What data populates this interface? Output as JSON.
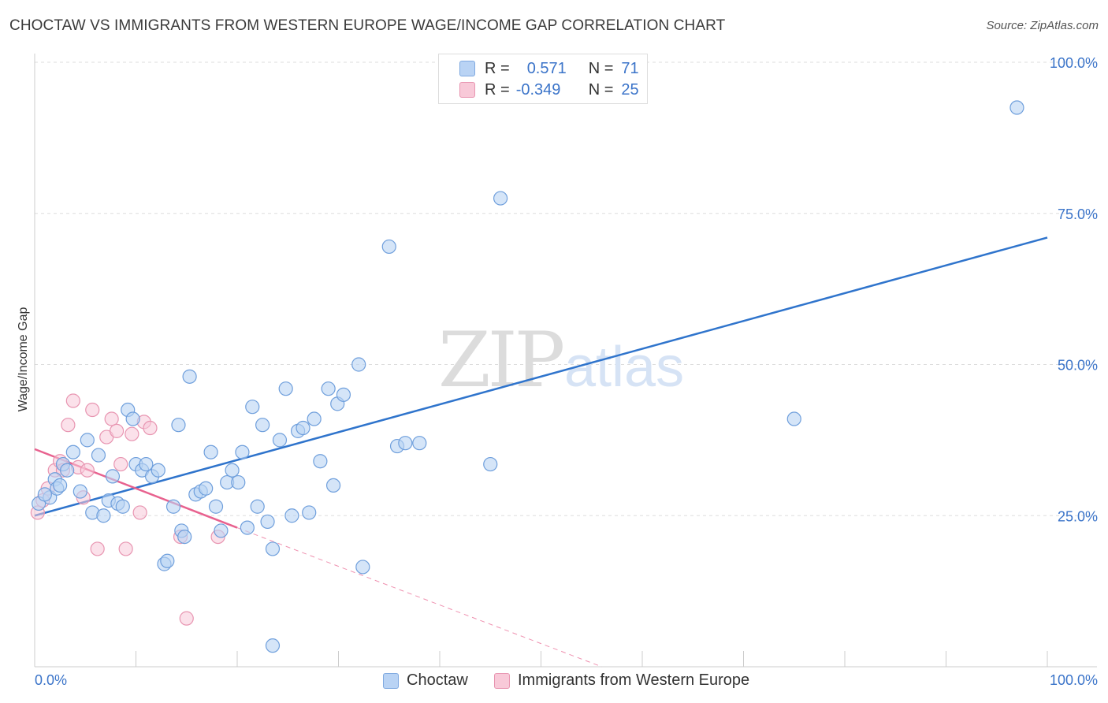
{
  "title": "CHOCTAW VS IMMIGRANTS FROM WESTERN EUROPE WAGE/INCOME GAP CORRELATION CHART",
  "source": "Source: ZipAtlas.com",
  "watermark": {
    "zip": "ZIP",
    "atlas": "atlas"
  },
  "legend_stats": [
    {
      "r_label": "R =",
      "r_value": "0.571",
      "n_label": "N =",
      "n_value": "71"
    },
    {
      "r_label": "R =",
      "r_value": "-0.349",
      "n_label": "N =",
      "n_value": "25"
    }
  ],
  "colors": {
    "choctaw_fill": "#b9d3f4",
    "choctaw_stroke": "#6f9fdc",
    "choctaw_line": "#2f74cc",
    "immig_fill": "#f8c9d8",
    "immig_stroke": "#e895b1",
    "immig_line": "#e8628f",
    "axis_label": "#3b74c9",
    "grid": "#dddddd"
  },
  "chart_data": {
    "type": "scatter",
    "title": "CHOCTAW VS IMMIGRANTS FROM WESTERN EUROPE WAGE/INCOME GAP CORRELATION CHART",
    "xlabel": "",
    "ylabel": "Wage/Income Gap",
    "xlim": [
      0,
      100
    ],
    "ylim": [
      0,
      100
    ],
    "x_tick_labels": [
      "0.0%",
      "100.0%"
    ],
    "y_tick_labels": [
      "25.0%",
      "50.0%",
      "75.0%",
      "100.0%"
    ],
    "y_ticks": [
      25,
      50,
      75,
      100
    ],
    "grid": true,
    "legend_position": "bottom",
    "series": [
      {
        "name": "Choctaw",
        "points": [
          [
            0.4,
            27.0
          ],
          [
            1.5,
            28.0
          ],
          [
            2.0,
            31.0
          ],
          [
            2.2,
            29.5
          ],
          [
            2.8,
            33.5
          ],
          [
            3.2,
            32.5
          ],
          [
            3.8,
            35.5
          ],
          [
            4.5,
            29.0
          ],
          [
            5.2,
            37.5
          ],
          [
            5.7,
            25.5
          ],
          [
            6.3,
            35.0
          ],
          [
            6.8,
            25.0
          ],
          [
            7.3,
            27.5
          ],
          [
            7.7,
            31.5
          ],
          [
            8.2,
            27.0
          ],
          [
            8.7,
            26.5
          ],
          [
            9.2,
            42.5
          ],
          [
            9.7,
            41.0
          ],
          [
            10.0,
            33.5
          ],
          [
            10.6,
            32.5
          ],
          [
            11.0,
            33.5
          ],
          [
            11.6,
            31.5
          ],
          [
            12.2,
            32.5
          ],
          [
            12.8,
            17.0
          ],
          [
            13.1,
            17.5
          ],
          [
            13.7,
            26.5
          ],
          [
            14.2,
            40.0
          ],
          [
            14.5,
            22.5
          ],
          [
            14.8,
            21.5
          ],
          [
            15.3,
            48.0
          ],
          [
            15.9,
            28.5
          ],
          [
            16.4,
            29.0
          ],
          [
            16.9,
            29.5
          ],
          [
            17.4,
            35.5
          ],
          [
            17.9,
            26.5
          ],
          [
            18.4,
            22.5
          ],
          [
            19.0,
            30.5
          ],
          [
            19.5,
            32.5
          ],
          [
            20.1,
            30.5
          ],
          [
            20.5,
            35.5
          ],
          [
            21.0,
            23.0
          ],
          [
            21.5,
            43.0
          ],
          [
            22.0,
            26.5
          ],
          [
            22.5,
            40.0
          ],
          [
            23.0,
            24.0
          ],
          [
            23.5,
            19.5
          ],
          [
            24.2,
            37.5
          ],
          [
            24.8,
            46.0
          ],
          [
            25.4,
            25.0
          ],
          [
            26.0,
            39.0
          ],
          [
            26.5,
            39.5
          ],
          [
            27.1,
            25.5
          ],
          [
            27.6,
            41.0
          ],
          [
            28.2,
            34.0
          ],
          [
            29.0,
            46.0
          ],
          [
            29.5,
            30.0
          ],
          [
            29.9,
            43.5
          ],
          [
            30.5,
            45.0
          ],
          [
            32.0,
            50.0
          ],
          [
            32.4,
            16.5
          ],
          [
            35.0,
            69.5
          ],
          [
            35.8,
            36.5
          ],
          [
            36.6,
            37.0
          ],
          [
            38.0,
            37.0
          ],
          [
            46.0,
            77.5
          ],
          [
            45.0,
            33.5
          ],
          [
            75.0,
            41.0
          ],
          [
            97.0,
            92.5
          ],
          [
            23.5,
            3.5
          ],
          [
            1.0,
            28.5
          ],
          [
            2.5,
            30.0
          ]
        ]
      },
      {
        "name": "Immigrants from Western Europe",
        "points": [
          [
            0.3,
            25.5
          ],
          [
            0.8,
            27.5
          ],
          [
            1.3,
            29.5
          ],
          [
            2.0,
            32.5
          ],
          [
            2.5,
            34.0
          ],
          [
            2.8,
            32.5
          ],
          [
            3.3,
            40.0
          ],
          [
            3.8,
            44.0
          ],
          [
            4.3,
            33.0
          ],
          [
            4.8,
            28.0
          ],
          [
            5.2,
            32.5
          ],
          [
            5.7,
            42.5
          ],
          [
            6.2,
            19.5
          ],
          [
            7.1,
            38.0
          ],
          [
            7.6,
            41.0
          ],
          [
            8.1,
            39.0
          ],
          [
            8.5,
            33.5
          ],
          [
            9.0,
            19.5
          ],
          [
            9.6,
            38.5
          ],
          [
            10.4,
            25.5
          ],
          [
            10.8,
            40.5
          ],
          [
            11.4,
            39.5
          ],
          [
            14.4,
            21.5
          ],
          [
            15.0,
            8.0
          ],
          [
            18.1,
            21.5
          ]
        ]
      }
    ],
    "trendlines": [
      {
        "series": "Choctaw",
        "x": [
          0,
          100
        ],
        "y": [
          25.0,
          71.0
        ],
        "style": "solid"
      },
      {
        "series": "Immigrants from Western Europe",
        "x": [
          0,
          20
        ],
        "y": [
          36.0,
          23.0
        ],
        "style": "solid"
      },
      {
        "series": "Immigrants from Western Europe",
        "x": [
          20,
          56
        ],
        "y": [
          23.0,
          0.0
        ],
        "style": "dashed"
      }
    ]
  }
}
